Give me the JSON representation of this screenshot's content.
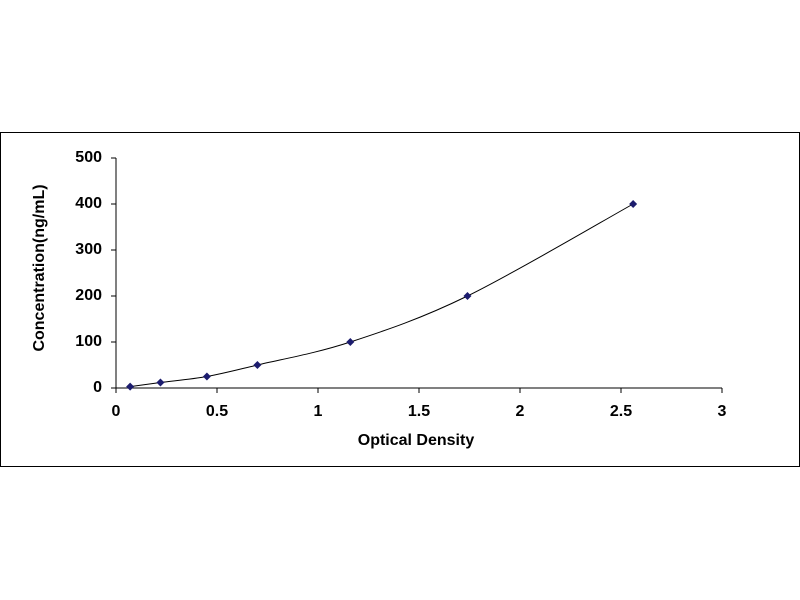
{
  "chart_data": {
    "type": "scatter",
    "x_label": "Optical Density",
    "y_label": "Concentration(ng/mL)",
    "x": [
      0.07,
      0.22,
      0.45,
      0.7,
      1.16,
      1.74,
      2.56
    ],
    "values": [
      3,
      12,
      25,
      50,
      100,
      200,
      400
    ],
    "color": "#1c1c6e",
    "xlim": [
      0,
      3
    ],
    "xticks": [
      0,
      0.5,
      1,
      1.5,
      2,
      2.5,
      3
    ],
    "ylim": [
      0,
      500
    ],
    "yticks": [
      0,
      100,
      200,
      300,
      400,
      500
    ],
    "trendline": true
  }
}
